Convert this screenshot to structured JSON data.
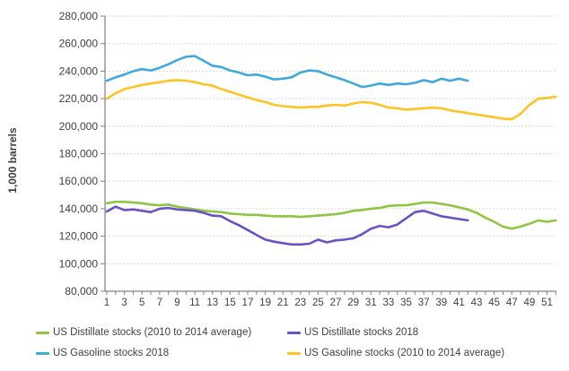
{
  "chart_data": {
    "type": "line",
    "title": "",
    "ylabel": "1,000 barrels",
    "xlabel": "",
    "ylim": [
      80000,
      280000
    ],
    "weeks_total": 52,
    "grid": true,
    "legend_position": "bottom",
    "colors": {
      "grid": "#d8d8d8",
      "axis": "#808080",
      "text": "#404040"
    },
    "y_ticks": [
      {
        "value": 80000,
        "label": "80,000"
      },
      {
        "value": 100000,
        "label": "100,000"
      },
      {
        "value": 120000,
        "label": "120,000"
      },
      {
        "value": 140000,
        "label": "140,000"
      },
      {
        "value": 160000,
        "label": "160,000"
      },
      {
        "value": 180000,
        "label": "180,000"
      },
      {
        "value": 200000,
        "label": "200,000"
      },
      {
        "value": 220000,
        "label": "220,000"
      },
      {
        "value": 240000,
        "label": "240,000"
      },
      {
        "value": 260000,
        "label": "260,000"
      },
      {
        "value": 280000,
        "label": "280,000"
      }
    ],
    "x_tick_labels": [
      1,
      3,
      5,
      7,
      9,
      11,
      13,
      15,
      17,
      19,
      21,
      23,
      25,
      27,
      29,
      31,
      33,
      35,
      37,
      39,
      41,
      43,
      45,
      47,
      49,
      51
    ],
    "series": [
      {
        "name": "US Distillate stocks (2010 to 2014 average)",
        "color": "#8DC63F",
        "start_week": 1,
        "values": [
          144000,
          145000,
          145000,
          144500,
          144000,
          143000,
          142500,
          143000,
          141500,
          140500,
          139500,
          138500,
          138000,
          137500,
          136500,
          136000,
          135500,
          135500,
          135000,
          134500,
          134500,
          134500,
          134000,
          134500,
          135000,
          135500,
          136000,
          137000,
          138500,
          139000,
          140000,
          140500,
          142000,
          142500,
          142500,
          143500,
          144500,
          144500,
          143500,
          142500,
          141000,
          139500,
          137000,
          133500,
          130500,
          127000,
          125500,
          127000,
          129000,
          131500,
          130500,
          131500
        ]
      },
      {
        "name": "US Distillate stocks 2018",
        "color": "#6C51C4",
        "start_week": 1,
        "values": [
          138000,
          141500,
          139000,
          139500,
          138500,
          137500,
          140000,
          140500,
          139500,
          139000,
          138500,
          137000,
          135000,
          134500,
          131000,
          128000,
          124500,
          121000,
          117500,
          116000,
          115000,
          114000,
          114000,
          114500,
          117500,
          115500,
          117000,
          117500,
          118500,
          121500,
          125500,
          127500,
          126500,
          128500,
          133000,
          137500,
          138500,
          136500,
          134500,
          133500,
          132500,
          131500
        ]
      },
      {
        "name": "US Gasoline stocks 2018",
        "color": "#3FA9DD",
        "start_week": 1,
        "values": [
          233000,
          235500,
          237500,
          240000,
          241500,
          240500,
          242500,
          245000,
          248000,
          250500,
          251000,
          247500,
          244000,
          243000,
          240500,
          239000,
          237000,
          237500,
          236000,
          234000,
          234500,
          235500,
          239000,
          240500,
          240000,
          237500,
          235500,
          233500,
          231000,
          228500,
          229500,
          231000,
          230000,
          231000,
          230500,
          231500,
          233500,
          232000,
          234500,
          233000,
          234500,
          233000
        ]
      },
      {
        "name": "US Gasoline stocks (2010 to 2014 average)",
        "color": "#FFC325",
        "start_week": 1,
        "values": [
          220000,
          224000,
          227000,
          228500,
          230000,
          231000,
          232000,
          233000,
          233500,
          233000,
          232000,
          230500,
          229500,
          227000,
          225000,
          223000,
          221000,
          219000,
          217500,
          215500,
          214500,
          214000,
          213500,
          214000,
          214000,
          215000,
          215500,
          215000,
          216500,
          217500,
          217000,
          215500,
          213500,
          213000,
          212000,
          212500,
          213000,
          213500,
          213000,
          211500,
          210500,
          209500,
          208500,
          207500,
          206500,
          205500,
          205000,
          209000,
          215500,
          220000,
          220500,
          221500
        ]
      }
    ]
  }
}
